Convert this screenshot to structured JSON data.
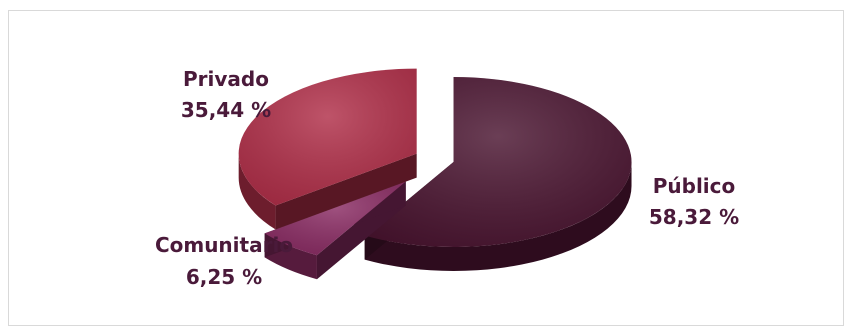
{
  "chart_data": {
    "type": "pie",
    "title": "",
    "slices": [
      {
        "label": "Público",
        "value": 58.32,
        "value_text": "58,32  %",
        "color": "#4a1430"
      },
      {
        "label": "Comunitario",
        "value": 6.25,
        "value_text": "6,25  %",
        "color": "#8a2b63"
      },
      {
        "label": "Privado",
        "value": 35.44,
        "value_text": "35,44  %",
        "color": "#b02e48"
      }
    ],
    "style": "3d-exploded"
  }
}
